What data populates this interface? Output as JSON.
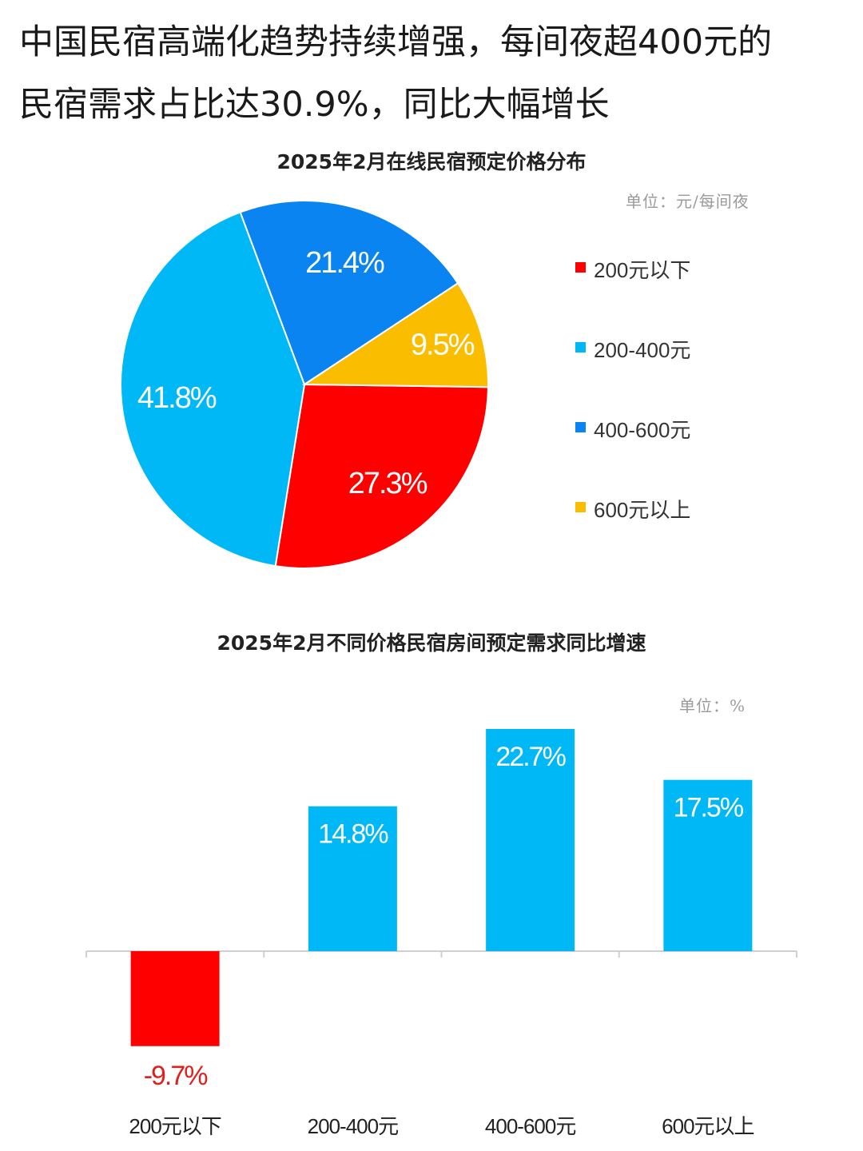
{
  "headline": {
    "line1": "中国民宿高端化趋势持续增强，每间夜超400元的",
    "line2": "民宿需求占比达30.9%，同比大幅增长"
  },
  "colors": {
    "red": "#ff0000",
    "light_blue": "#00b8f5",
    "blue": "#0a84f0",
    "yellow": "#fbbd00"
  },
  "chart_data": [
    {
      "type": "pie",
      "title": "2025年2月在线民宿预定价格分布",
      "unit": "单位：元/每间夜",
      "legend_position": "right",
      "categories": [
        "200元以下",
        "200-400元",
        "400-600元",
        "600元以上"
      ],
      "values": [
        27.3,
        41.8,
        21.4,
        9.5
      ],
      "labels": [
        "27.3%",
        "41.8%",
        "21.4%",
        "9.5%"
      ],
      "colors": [
        "#ff0000",
        "#00b8f5",
        "#0a84f0",
        "#fbbd00"
      ]
    },
    {
      "type": "bar",
      "title": "2025年2月不同价格民宿房间预定需求同比增速",
      "unit": "单位：%",
      "categories": [
        "200元以下",
        "200-400元",
        "400-600元",
        "600元以上"
      ],
      "values": [
        -9.7,
        14.8,
        22.7,
        17.5
      ],
      "labels": [
        "-9.7%",
        "14.8%",
        "22.7%",
        "17.5%"
      ],
      "colors": [
        "#ff0000",
        "#00b8f5",
        "#00b8f5",
        "#00b8f5"
      ],
      "negative_label_color": "#e0201e",
      "ylim": [
        -9.7,
        22.7
      ],
      "grid": false
    }
  ]
}
